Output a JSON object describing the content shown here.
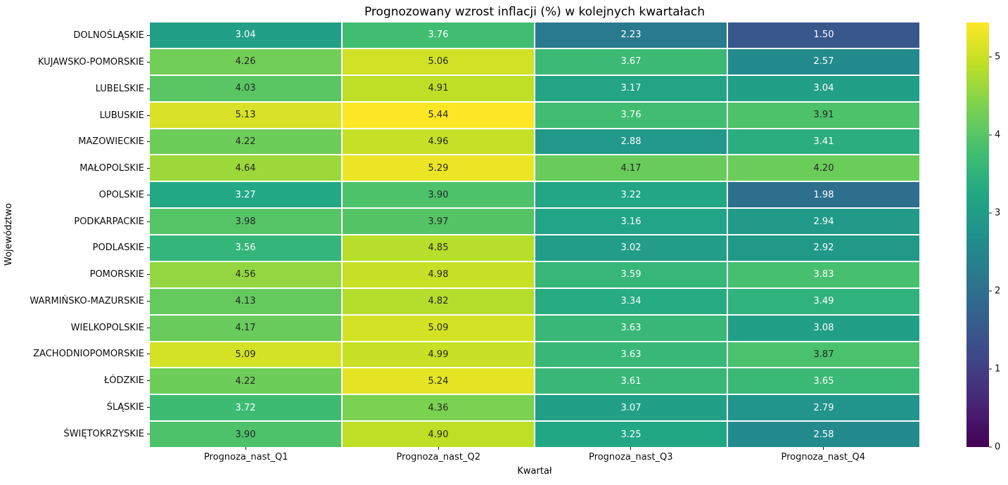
{
  "figure": {
    "background": "#ffffff"
  },
  "chart_data": {
    "type": "heatmap",
    "title": "Prognozowany wzrost inflacji (%) w kolejnych kwartałach",
    "xlabel": "Kwartał",
    "ylabel": "Województwo",
    "columns": [
      "Prognoza_nast_Q1",
      "Prognoza_nast_Q2",
      "Prognoza_nast_Q3",
      "Prognoza_nast_Q4"
    ],
    "rows": [
      "DOLNOŚLĄSKIE",
      "KUJAWSKO-POMORSKIE",
      "LUBELSKIE",
      "LUBUSKIE",
      "MAZOWIECKIE",
      "MAŁOPOLSKIE",
      "OPOLSKIE",
      "PODKARPACKIE",
      "PODLASKIE",
      "POMORSKIE",
      "WARMIŃSKO-MAZURSKIE",
      "WIELKOPOLSKIE",
      "ZACHODNIOPOMORSKIE",
      "ŁÓDZKIE",
      "ŚLĄSKIE",
      "ŚWIĘTOKRZYSKIE"
    ],
    "values": [
      [
        3.04,
        3.76,
        2.23,
        1.5
      ],
      [
        4.26,
        5.06,
        3.67,
        2.57
      ],
      [
        4.03,
        4.91,
        3.17,
        3.04
      ],
      [
        5.13,
        5.44,
        3.76,
        3.91
      ],
      [
        4.22,
        4.96,
        2.88,
        3.41
      ],
      [
        4.64,
        5.29,
        4.17,
        4.2
      ],
      [
        3.27,
        3.9,
        3.22,
        1.98
      ],
      [
        3.98,
        3.97,
        3.16,
        2.94
      ],
      [
        3.56,
        4.85,
        3.02,
        2.92
      ],
      [
        4.56,
        4.98,
        3.59,
        3.83
      ],
      [
        4.13,
        4.82,
        3.34,
        3.49
      ],
      [
        4.17,
        5.09,
        3.63,
        3.08
      ],
      [
        5.09,
        4.99,
        3.63,
        3.87
      ],
      [
        4.22,
        5.24,
        3.61,
        3.65
      ],
      [
        3.72,
        4.36,
        3.07,
        2.79
      ],
      [
        3.9,
        4.9,
        3.25,
        2.58
      ]
    ],
    "value_decimals": 2,
    "colormap": "viridis",
    "vmin": 0,
    "vmax": 5.44,
    "colorbar_ticks": [
      0,
      1,
      2,
      3,
      4,
      5
    ],
    "viridis_stops": [
      "#440154",
      "#482475",
      "#414487",
      "#355f8d",
      "#2a788e",
      "#21918c",
      "#22a884",
      "#44bf70",
      "#7ad151",
      "#bddf26",
      "#fde725"
    ],
    "annotation_colors": {
      "light": "#ffffff",
      "dark": "#262626"
    },
    "dark_text_threshold": 3.85,
    "grid_color": "#ffffff",
    "legend_position": "right"
  }
}
